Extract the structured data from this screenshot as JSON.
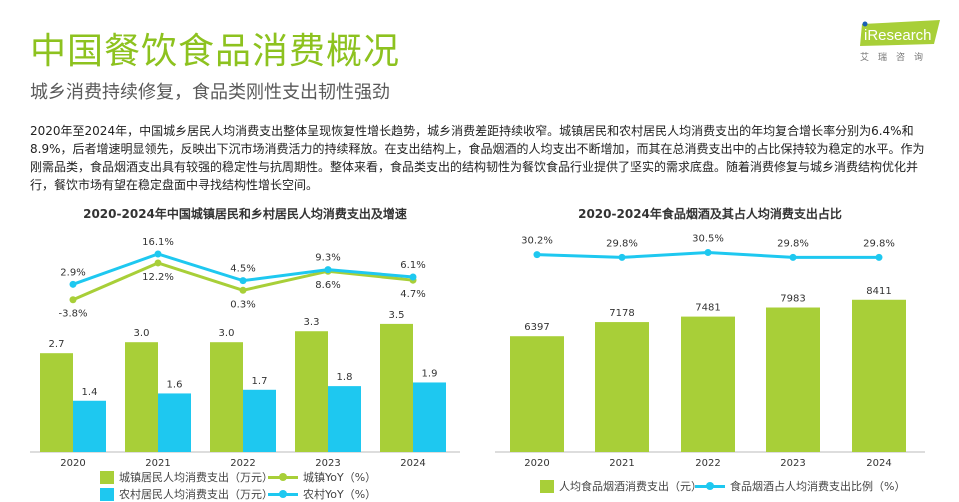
{
  "header": {
    "title": "中国餐饮食品消费概况",
    "subtitle": "城乡消费持续修复，食品类刚性支出韧性强劲",
    "logo_text": "iResearch",
    "logo_sub": "艾瑞咨询"
  },
  "body_text": "2020年至2024年，中国城乡居民人均消费支出整体呈现恢复性增长趋势，城乡消费差距持续收窄。城镇居民和农村居民人均消费支出的年均复合增长率分别为6.4%和8.9%，后者增速明显领先，反映出下沉市场消费活力的持续释放。在支出结构上，食品烟酒的人均支出不断增加，而其在总消费支出中的占比保持较为稳定的水平。作为刚需品类，食品烟酒支出具有较强的稳定性与抗周期性。整体来看，食品类支出的结构韧性为餐饮食品行业提供了坚实的需求底盘。随着消费修复与城乡消费结构优化并行，餐饮市场有望在稳定盘面中寻找结构性增长空间。",
  "colors": {
    "green": "#a8cf38",
    "blue": "#1ec8f0",
    "title_green": "#8dc21f"
  },
  "chart_data": [
    {
      "type": "bar+line",
      "title": "2020-2024年中国城镇居民和乡村居民人均消费支出及增速",
      "categories": [
        "2020",
        "2021",
        "2022",
        "2023",
        "2024"
      ],
      "series": [
        {
          "name": "城镇居民人均消费支出（万元）",
          "kind": "bar",
          "values": [
            2.7,
            3.0,
            3.0,
            3.3,
            3.5
          ],
          "labels": [
            "2.7",
            "3.0",
            "3.0",
            "3.3",
            "3.5"
          ]
        },
        {
          "name": "农村居民人均消费支出（万元）",
          "kind": "bar",
          "values": [
            1.4,
            1.6,
            1.7,
            1.8,
            1.9
          ],
          "labels": [
            "1.4",
            "1.6",
            "1.7",
            "1.8",
            "1.9"
          ]
        },
        {
          "name": "城镇YoY（%）",
          "kind": "line",
          "values": [
            -3.8,
            12.2,
            0.3,
            8.6,
            4.7
          ],
          "labels": [
            "-3.8%",
            "12.2%",
            "0.3%",
            "8.6%",
            "4.7%"
          ]
        },
        {
          "name": "农村YoY（%）",
          "kind": "line",
          "values": [
            2.9,
            16.1,
            4.5,
            9.3,
            6.1
          ],
          "labels": [
            "2.9%",
            "16.1%",
            "4.5%",
            "9.3%",
            "6.1%"
          ]
        }
      ],
      "legend": "bottom"
    },
    {
      "type": "bar+line",
      "title": "2020-2024年食品烟酒及其占人均消费支出占比",
      "categories": [
        "2020",
        "2021",
        "2022",
        "2023",
        "2024"
      ],
      "series": [
        {
          "name": "人均食品烟酒消费支出（元）",
          "kind": "bar",
          "values": [
            6397,
            7178,
            7481,
            7983,
            8411
          ],
          "labels": [
            "6397",
            "7178",
            "7481",
            "7983",
            "8411"
          ]
        },
        {
          "name": "食品烟酒占人均消费支出比例（%）",
          "kind": "line",
          "values": [
            30.2,
            29.8,
            30.5,
            29.8,
            29.8
          ],
          "labels": [
            "30.2%",
            "29.8%",
            "30.5%",
            "29.8%",
            "29.8%"
          ]
        }
      ],
      "legend": "bottom"
    }
  ]
}
